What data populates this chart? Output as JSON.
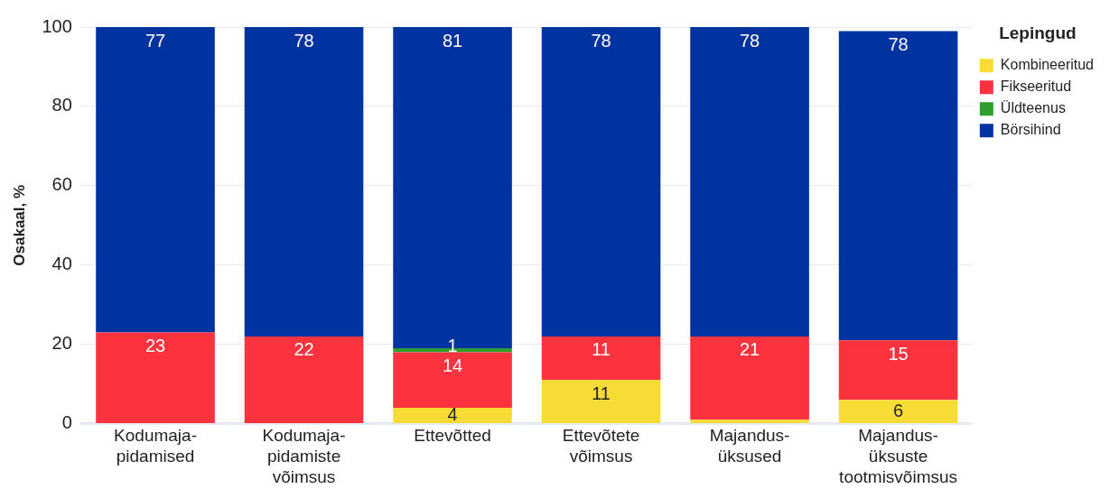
{
  "chart_data": {
    "type": "bar",
    "stacked": true,
    "ylabel": "Osakaal, %",
    "legend_title": "Lepingud",
    "legend": "top right",
    "grid": "y",
    "ylim": [
      0,
      100
    ],
    "yticks": [
      0,
      20,
      40,
      60,
      80,
      100
    ],
    "categories": [
      "Kodumaja-\npidamised",
      "Kodumaja-\npidamiste\nvõimsus",
      "Ettevõtted",
      "Ettevõtete\nvõimsus",
      "Majandus-\nüksused",
      "Majandus-\nüksuste\ntootmisvõimsus"
    ],
    "series": [
      {
        "name": "Kombineeritud",
        "color": "#f8dc36",
        "values": [
          0,
          0,
          4,
          11,
          1,
          6
        ],
        "value_labels": [
          null,
          null,
          "4",
          "11",
          null,
          "6"
        ]
      },
      {
        "name": "Fikseeritud",
        "color": "#fc333f",
        "values": [
          23,
          22,
          14,
          11,
          21,
          15
        ],
        "value_labels": [
          "23",
          "22",
          "14",
          "11",
          "21",
          "15"
        ]
      },
      {
        "name": "Üldteenus",
        "color": "#2e9e2e",
        "values": [
          0,
          0,
          1,
          0,
          0,
          0
        ],
        "value_labels": [
          null,
          null,
          "1",
          null,
          null,
          null
        ]
      },
      {
        "name": "Börsihind",
        "color": "#0033a0",
        "values": [
          77,
          78,
          81,
          78,
          78,
          78
        ],
        "value_labels": [
          "77",
          "78",
          "81",
          "78",
          "78",
          "78"
        ]
      }
    ]
  }
}
